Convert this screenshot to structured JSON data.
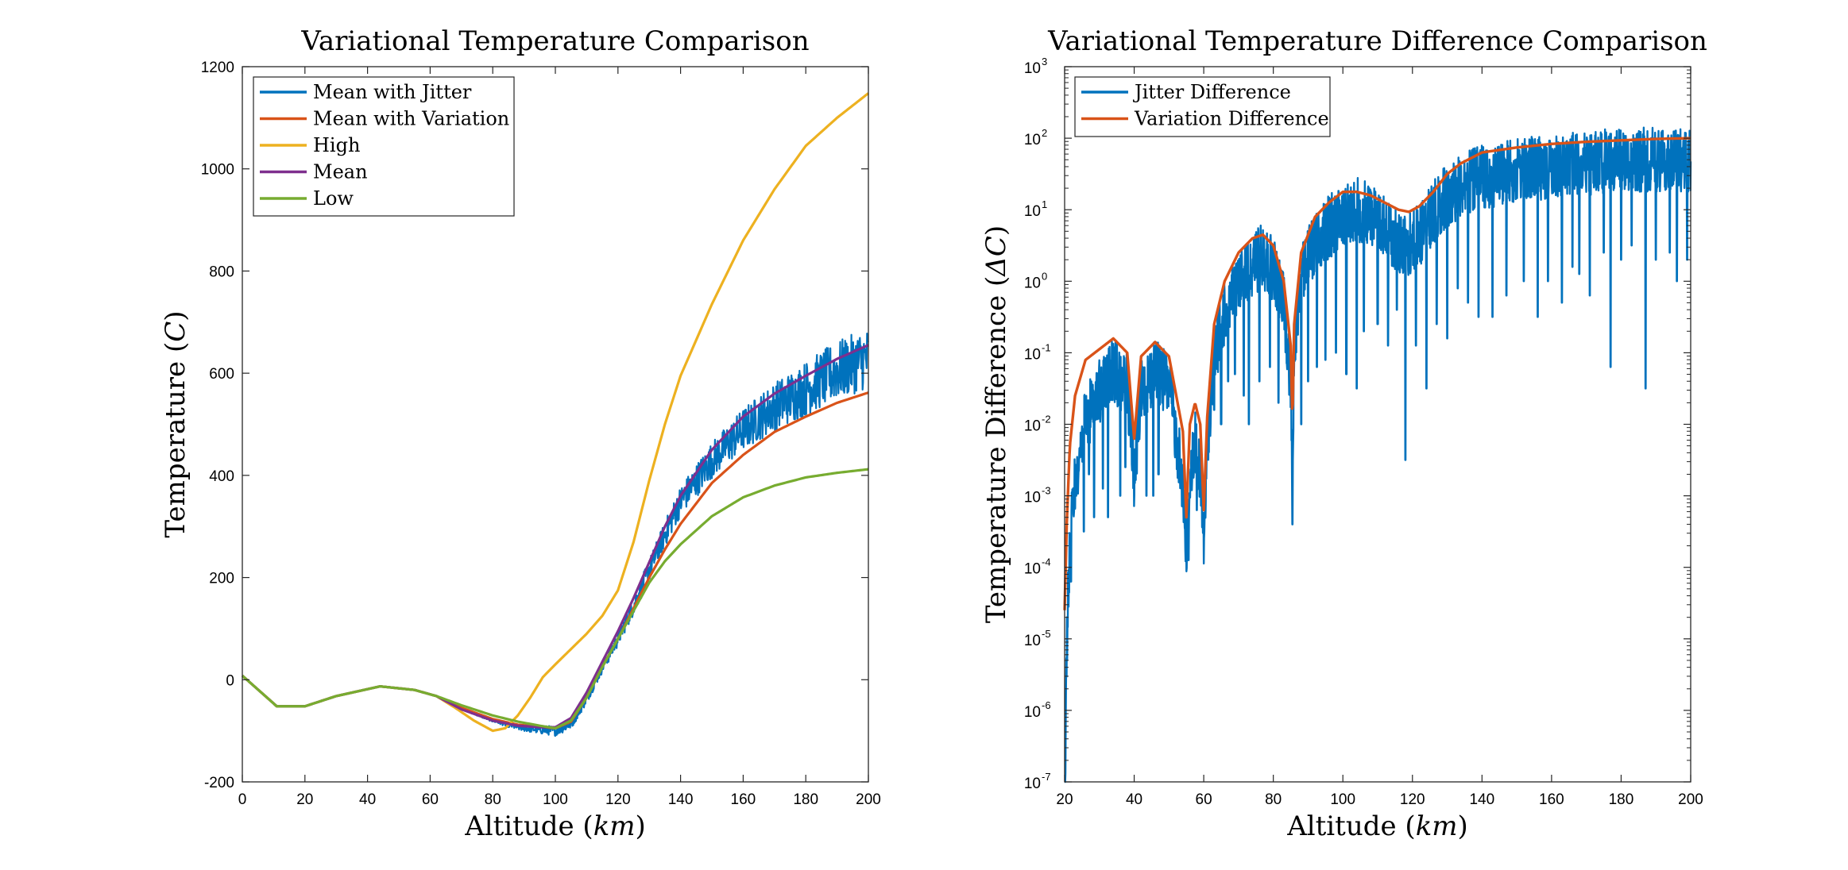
{
  "chart_data": [
    {
      "type": "line",
      "title": "Variational Temperature Comparison",
      "xlabel_text": "Altitude",
      "xlabel_unit": "km",
      "ylabel_text": "Temperature",
      "ylabel_unit": "C",
      "xlim": [
        0,
        200
      ],
      "ylim": [
        -200,
        1200
      ],
      "xticks": [
        0,
        20,
        40,
        60,
        80,
        100,
        120,
        140,
        160,
        180,
        200
      ],
      "yticks": [
        -200,
        0,
        200,
        400,
        600,
        800,
        1000,
        1200
      ],
      "legend_position": "top-left",
      "series": [
        {
          "name": "Mean with Jitter",
          "color": "#0072BD",
          "x": [
            0,
            11,
            20,
            30,
            44,
            55,
            62,
            70,
            80,
            88,
            95,
            100,
            105,
            110,
            115,
            120,
            125,
            130,
            135,
            140,
            150,
            160,
            170,
            180,
            190,
            200
          ],
          "y": [
            8,
            -52,
            -52,
            -32,
            -13,
            -20,
            -32,
            -58,
            -80,
            -93,
            -98,
            -100,
            -85,
            -35,
            25,
            80,
            145,
            215,
            285,
            350,
            430,
            490,
            535,
            570,
            605,
            630
          ],
          "jitter_amplitude": [
            0,
            0,
            0,
            0,
            0,
            0,
            0,
            0,
            3,
            6,
            8,
            10,
            12,
            12,
            12,
            15,
            18,
            22,
            26,
            30,
            36,
            42,
            48,
            54,
            58,
            60
          ]
        },
        {
          "name": "Mean with Variation",
          "color": "#D95319",
          "x": [
            0,
            11,
            20,
            30,
            44,
            55,
            62,
            70,
            80,
            88,
            95,
            100,
            105,
            110,
            115,
            120,
            125,
            130,
            135,
            140,
            150,
            160,
            170,
            180,
            190,
            200
          ],
          "y": [
            8,
            -52,
            -52,
            -32,
            -13,
            -20,
            -32,
            -55,
            -77,
            -88,
            -92,
            -95,
            -82,
            -35,
            25,
            80,
            140,
            200,
            255,
            305,
            385,
            440,
            485,
            515,
            542,
            562
          ]
        },
        {
          "name": "High",
          "color": "#EDB120",
          "x": [
            0,
            11,
            20,
            30,
            44,
            55,
            62,
            68,
            74,
            80,
            84,
            88,
            92,
            96,
            100,
            105,
            110,
            115,
            120,
            125,
            130,
            135,
            140,
            150,
            160,
            170,
            180,
            190,
            200
          ],
          "y": [
            8,
            -52,
            -52,
            -32,
            -13,
            -20,
            -32,
            -55,
            -80,
            -100,
            -95,
            -70,
            -35,
            5,
            30,
            60,
            90,
            125,
            175,
            270,
            390,
            500,
            595,
            735,
            860,
            960,
            1045,
            1100,
            1148
          ]
        },
        {
          "name": "Mean",
          "color": "#7E2F8E",
          "x": [
            0,
            11,
            20,
            30,
            44,
            55,
            62,
            70,
            80,
            88,
            95,
            100,
            105,
            110,
            115,
            120,
            125,
            130,
            135,
            140,
            150,
            160,
            170,
            180,
            190,
            200
          ],
          "y": [
            8,
            -52,
            -52,
            -32,
            -13,
            -20,
            -32,
            -58,
            -80,
            -90,
            -93,
            -93,
            -75,
            -25,
            35,
            95,
            160,
            230,
            300,
            360,
            450,
            515,
            560,
            595,
            628,
            655
          ]
        },
        {
          "name": "Low",
          "color": "#77AC30",
          "x": [
            0,
            11,
            20,
            30,
            44,
            55,
            62,
            70,
            80,
            88,
            95,
            100,
            105,
            110,
            115,
            120,
            125,
            130,
            135,
            140,
            150,
            160,
            170,
            180,
            190,
            200
          ],
          "y": [
            8,
            -52,
            -52,
            -32,
            -13,
            -20,
            -32,
            -50,
            -70,
            -82,
            -90,
            -95,
            -80,
            -35,
            25,
            80,
            135,
            190,
            232,
            265,
            320,
            357,
            380,
            396,
            405,
            412
          ]
        }
      ]
    },
    {
      "type": "line",
      "title": "Variational Temperature Difference Comparison",
      "xlabel_text": "Altitude",
      "xlabel_unit": "km",
      "ylabel_text": "Temperature Difference",
      "ylabel_unit": "ΔC",
      "yscale": "log",
      "xlim": [
        20,
        200
      ],
      "ylim": [
        1e-07,
        1000
      ],
      "xticks": [
        20,
        40,
        60,
        80,
        100,
        120,
        140,
        160,
        180,
        200
      ],
      "yticks_exponent": [
        -7,
        -6,
        -5,
        -4,
        -3,
        -2,
        -1,
        0,
        1,
        2,
        3
      ],
      "ytick_base": "10",
      "legend_position": "top-left",
      "series": [
        {
          "name": "Jitter Difference",
          "color": "#0072BD",
          "x": [
            20,
            20.6,
            21.5,
            23,
            26,
            30,
            34,
            38,
            40,
            42,
            46,
            50,
            54,
            55,
            56,
            57.5,
            59,
            60,
            61,
            63,
            66,
            70,
            74,
            77,
            80,
            83,
            85,
            85.5,
            86,
            88,
            92,
            96,
            100,
            104,
            108,
            112,
            116,
            119,
            122,
            126,
            130,
            134,
            140,
            150,
            160,
            170,
            180,
            190,
            200
          ],
          "log_y": [
            -7.2,
            -4.6,
            -3.3,
            -2.3,
            -1.5,
            -1.1,
            -0.8,
            -1.0,
            -2.3,
            -1.1,
            -0.8,
            -1.0,
            -2.4,
            -3.4,
            -2.3,
            -1.8,
            -2.3,
            -3.3,
            -1.8,
            -0.6,
            0.0,
            0.4,
            0.7,
            0.8,
            0.6,
            0.2,
            -1.0,
            -2.3,
            -0.4,
            0.5,
            1.0,
            1.2,
            1.4,
            1.45,
            1.4,
            1.2,
            1.0,
            0.95,
            1.1,
            1.4,
            1.65,
            1.8,
            1.9,
            2.0,
            2.05,
            2.1,
            2.15,
            2.15,
            2.15
          ],
          "jitter_depth_decades": 0.9,
          "spikes": [
            [
              21.8,
              -4.2
            ],
            [
              23.3,
              -3.0
            ],
            [
              25.5,
              -3.5
            ],
            [
              27,
              -2.7
            ],
            [
              28.5,
              -3.3
            ],
            [
              31,
              -2.9
            ],
            [
              32.5,
              -3.3
            ],
            [
              36,
              -3.0
            ],
            [
              37.5,
              -2.6
            ],
            [
              43.5,
              -3.0
            ],
            [
              45.5,
              -3.0
            ],
            [
              47,
              -2.7
            ],
            [
              55.6,
              -3.9
            ],
            [
              58,
              -3.2
            ],
            [
              63,
              -1.8
            ],
            [
              65,
              -2.0
            ],
            [
              67,
              -1.4
            ],
            [
              69,
              -1.3
            ],
            [
              71.5,
              -1.6
            ],
            [
              73,
              -2.0
            ],
            [
              76,
              -1.4
            ],
            [
              79,
              -1.2
            ],
            [
              81.5,
              -1.7
            ],
            [
              85.5,
              -3.4
            ],
            [
              88,
              -2.0
            ],
            [
              90,
              -1.4
            ],
            [
              92.5,
              -1.2
            ],
            [
              95,
              -1.1
            ],
            [
              98,
              -1.0
            ],
            [
              101,
              -1.3
            ],
            [
              104,
              -1.5
            ],
            [
              106,
              -0.7
            ],
            [
              110,
              -0.6
            ],
            [
              113,
              -0.9
            ],
            [
              115.5,
              -0.4
            ],
            [
              118,
              -2.5
            ],
            [
              121,
              -0.9
            ],
            [
              124,
              -1.5
            ],
            [
              127,
              -0.6
            ],
            [
              130,
              -0.8
            ],
            [
              133,
              -0.1
            ],
            [
              136,
              -0.3
            ],
            [
              139,
              -0.5
            ],
            [
              143,
              -0.5
            ],
            [
              147,
              -0.2
            ],
            [
              152,
              0.0
            ],
            [
              156,
              -0.5
            ],
            [
              159,
              0.0
            ],
            [
              163,
              -0.3
            ],
            [
              166,
              0.2
            ],
            [
              168,
              0.1
            ],
            [
              171,
              -0.2
            ],
            [
              175,
              0.4
            ],
            [
              177,
              -1.2
            ],
            [
              180,
              0.3
            ],
            [
              183,
              0.5
            ],
            [
              187,
              -1.5
            ],
            [
              190,
              0.3
            ],
            [
              194,
              0.4
            ],
            [
              196,
              0.0
            ],
            [
              199,
              0.3
            ]
          ]
        },
        {
          "name": "Variation Difference",
          "color": "#D95319",
          "x": [
            20,
            20.6,
            21.5,
            23,
            26,
            30,
            34,
            38,
            40,
            42,
            46,
            50,
            54,
            55,
            56,
            57.5,
            59,
            60,
            61,
            63,
            66,
            70,
            74,
            77,
            80,
            83,
            85,
            85.5,
            86,
            88,
            92,
            96,
            100,
            104,
            108,
            112,
            116,
            119,
            122,
            126,
            130,
            134,
            140,
            150,
            160,
            170,
            180,
            190,
            200
          ],
          "log_y": [
            -4.6,
            -3.4,
            -2.3,
            -1.6,
            -1.1,
            -0.95,
            -0.8,
            -1.0,
            -2.2,
            -1.05,
            -0.85,
            -1.05,
            -2.1,
            -3.3,
            -2.0,
            -1.7,
            -2.0,
            -3.2,
            -1.9,
            -0.6,
            0.0,
            0.4,
            0.6,
            0.65,
            0.5,
            0.0,
            -0.9,
            -2.0,
            -0.6,
            0.4,
            0.9,
            1.1,
            1.25,
            1.25,
            1.2,
            1.1,
            1.0,
            0.97,
            1.05,
            1.25,
            1.5,
            1.65,
            1.8,
            1.87,
            1.92,
            1.95,
            1.97,
            1.99,
            2.0
          ]
        }
      ]
    }
  ]
}
